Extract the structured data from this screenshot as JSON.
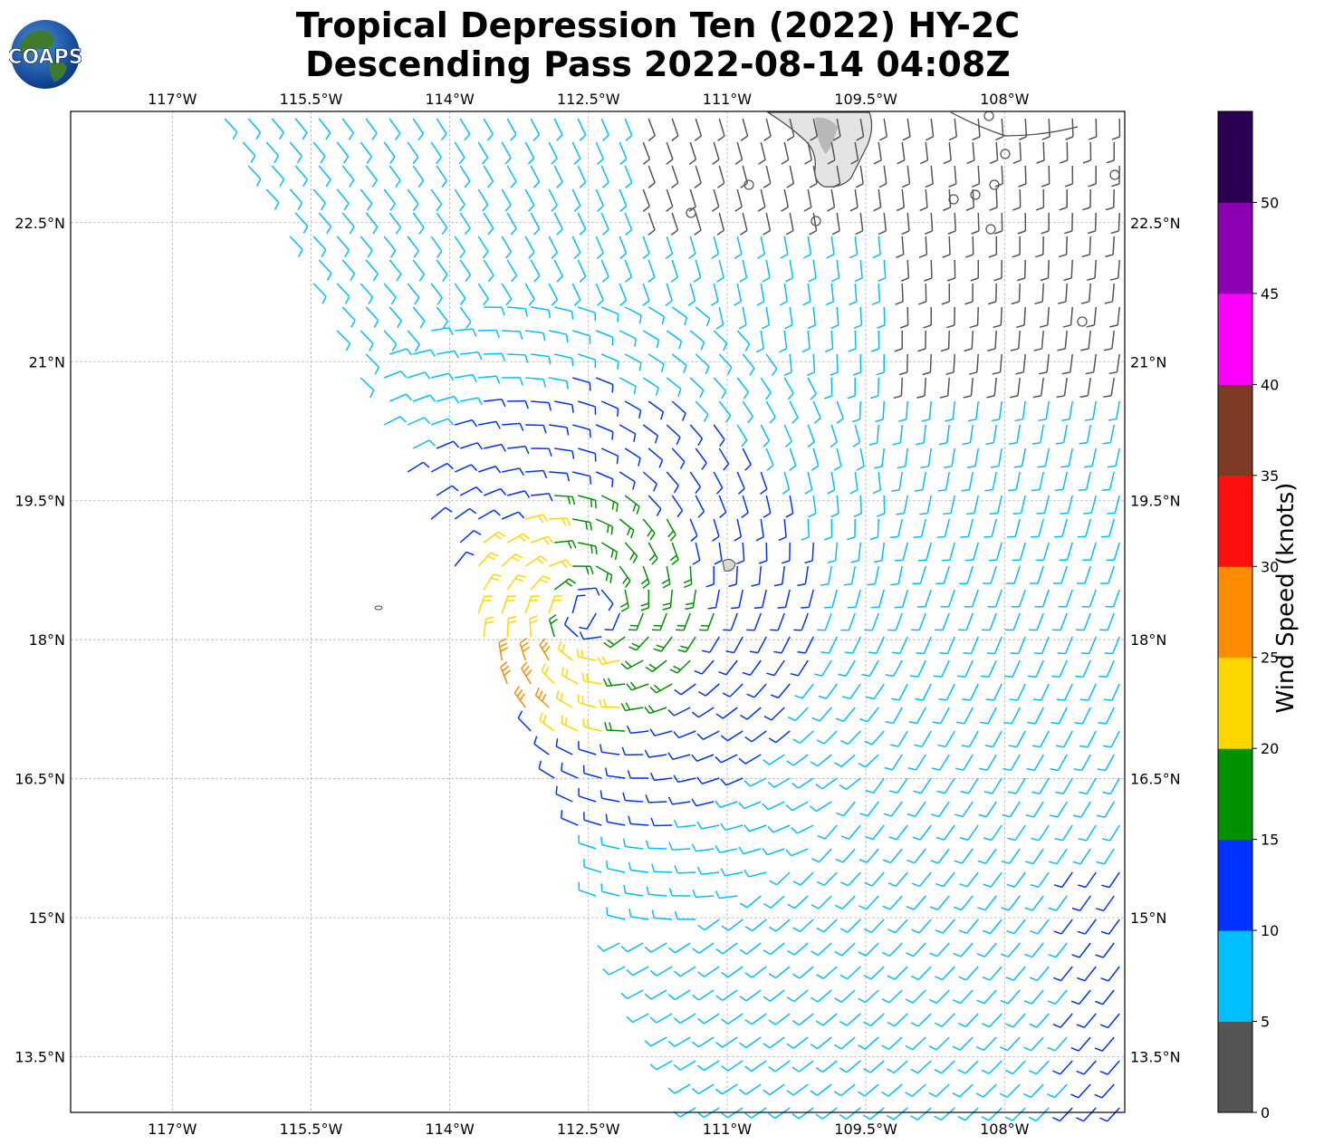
{
  "title_line1": "Tropical Depression Ten (2022) HY-2C",
  "title_line2": "Descending Pass 2022-08-14 04:08Z",
  "logo_text": "COAPS",
  "lon_ticks": [
    "117°W",
    "115.5°W",
    "114°W",
    "112.5°W",
    "111°W",
    "109.5°W",
    "108°W"
  ],
  "lat_ticks": [
    "22.5°N",
    "21°N",
    "19.5°N",
    "18°N",
    "16.5°N",
    "15°N",
    "13.5°N"
  ],
  "colorbar": {
    "label": "Wind Speed (knots)",
    "ticks": [
      "0",
      "5",
      "10",
      "15",
      "20",
      "25",
      "30",
      "35",
      "40",
      "45",
      "50"
    ],
    "colors": [
      "#555555",
      "#00bfff",
      "#0033ff",
      "#009100",
      "#ffd700",
      "#ff8c00",
      "#ff1010",
      "#7f3a26",
      "#ff00ff",
      "#8b00b0",
      "#2a0050"
    ]
  },
  "chart_data": {
    "type": "wind-barb-map",
    "title": "Tropical Depression Ten (2022) HY-2C Descending Pass 2022-08-14 04:08Z",
    "xlim": [
      -118.1,
      -106.7
    ],
    "ylim": [
      12.9,
      23.7
    ],
    "center": {
      "lon": -112.5,
      "lat": 18.3
    },
    "speed_units": "knots",
    "speed_bins": [
      0,
      5,
      10,
      15,
      20,
      25,
      30,
      35,
      40,
      45,
      50,
      55
    ]
  }
}
